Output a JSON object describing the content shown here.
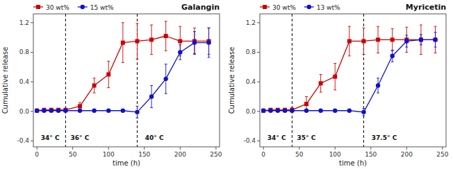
{
  "chart_data": [
    {
      "type": "line",
      "title": "Galangin",
      "xlabel": "time (h)",
      "ylabel": "Cumulative release",
      "x": [
        0,
        10,
        20,
        30,
        40,
        60,
        80,
        100,
        120,
        140,
        160,
        180,
        200,
        220,
        240
      ],
      "series": [
        {
          "name": "30 wt%",
          "color": "#cc0000",
          "marker": "square",
          "values": [
            0.01,
            0.02,
            0.02,
            0.02,
            0.02,
            0.07,
            0.35,
            0.5,
            0.93,
            0.95,
            0.97,
            1.02,
            0.95,
            0.95,
            0.95
          ],
          "errors": [
            0.02,
            0.01,
            0.01,
            0.01,
            0.01,
            0.05,
            0.1,
            0.18,
            0.27,
            0.24,
            0.2,
            0.2,
            0.2,
            0.18,
            0.18
          ]
        },
        {
          "name": "15 wt%",
          "color": "#1010cc",
          "marker": "circle",
          "values": [
            0.01,
            0.01,
            0.01,
            0.01,
            0.01,
            0.01,
            0.01,
            0.01,
            0.01,
            -0.01,
            0.2,
            0.44,
            0.8,
            0.93,
            0.93
          ],
          "errors": [
            0.01,
            0.01,
            0.01,
            0.01,
            0.01,
            0.01,
            0.01,
            0.01,
            0.01,
            0.08,
            0.15,
            0.2,
            0.1,
            0.15,
            0.2
          ]
        }
      ],
      "vlines": [
        40,
        140
      ],
      "annotations": [
        "34° C",
        "36° C",
        "40° C"
      ],
      "xlim": [
        -5,
        255
      ],
      "ylim": [
        -0.48,
        1.32
      ],
      "xticks": [
        0,
        50,
        100,
        150,
        200,
        250
      ],
      "yticks": [
        -0.4,
        {
          "value": 0,
          "label": "0.0"
        },
        0.4,
        0.8,
        1.2
      ],
      "legend": "upper left",
      "grid": false
    },
    {
      "type": "line",
      "title": "Myricetin",
      "xlabel": "time (h)",
      "ylabel": "Cumulative release",
      "x": [
        0,
        10,
        20,
        30,
        40,
        60,
        80,
        100,
        120,
        140,
        160,
        180,
        200,
        220,
        240
      ],
      "series": [
        {
          "name": "30 wt%",
          "color": "#cc0000",
          "marker": "square",
          "values": [
            0.01,
            0.02,
            0.02,
            0.02,
            0.02,
            0.1,
            0.38,
            0.47,
            0.95,
            0.95,
            0.97,
            0.97,
            0.97,
            0.97,
            0.97
          ],
          "errors": [
            0.01,
            0.01,
            0.01,
            0.01,
            0.03,
            0.1,
            0.12,
            0.18,
            0.2,
            0.18,
            0.18,
            0.15,
            0.17,
            0.2,
            0.18
          ]
        },
        {
          "name": "13 wt%",
          "color": "#1010cc",
          "marker": "circle",
          "values": [
            0.01,
            0.01,
            0.01,
            0.01,
            0.01,
            0.01,
            0.01,
            0.01,
            0.01,
            -0.01,
            0.35,
            0.75,
            0.95,
            0.97,
            0.97
          ],
          "errors": [
            0.01,
            0.01,
            0.01,
            0.01,
            0.01,
            0.01,
            0.01,
            0.01,
            0.01,
            0.05,
            0.1,
            0.08,
            0.08,
            0.07,
            0.1
          ]
        }
      ],
      "vlines": [
        40,
        140
      ],
      "annotations": [
        "34° C",
        "35° C",
        "37.5° C"
      ],
      "xlim": [
        -5,
        255
      ],
      "ylim": [
        -0.48,
        1.32
      ],
      "xticks": [
        0,
        50,
        100,
        150,
        200,
        250
      ],
      "yticks": [
        -0.4,
        {
          "value": 0,
          "label": "0.0"
        },
        0.4,
        0.8,
        1.2
      ],
      "legend": "upper left",
      "grid": false
    }
  ]
}
